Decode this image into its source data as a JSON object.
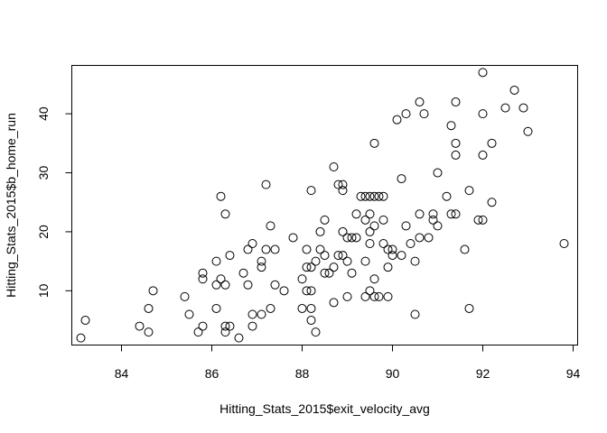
{
  "chart_data": {
    "type": "scatter",
    "title": "",
    "xlabel": "Hitting_Stats_2015$exit_velocity_avg",
    "ylabel": "Hitting_Stats_2015$b_home_run",
    "xlim": [
      82.9,
      94.1
    ],
    "ylim": [
      0.8,
      48.2
    ],
    "xticks": [
      84,
      86,
      88,
      90,
      92,
      94
    ],
    "yticks": [
      10,
      20,
      30,
      40
    ],
    "grid": false,
    "legend": "none",
    "points": [
      {
        "x": 83.1,
        "y": 2
      },
      {
        "x": 83.2,
        "y": 5
      },
      {
        "x": 84.4,
        "y": 4
      },
      {
        "x": 84.6,
        "y": 3
      },
      {
        "x": 84.6,
        "y": 7
      },
      {
        "x": 84.7,
        "y": 10
      },
      {
        "x": 85.4,
        "y": 9
      },
      {
        "x": 85.5,
        "y": 6
      },
      {
        "x": 85.7,
        "y": 3
      },
      {
        "x": 85.8,
        "y": 4
      },
      {
        "x": 85.8,
        "y": 12
      },
      {
        "x": 85.8,
        "y": 13
      },
      {
        "x": 86.1,
        "y": 11
      },
      {
        "x": 86.1,
        "y": 7
      },
      {
        "x": 86.1,
        "y": 15
      },
      {
        "x": 86.2,
        "y": 12
      },
      {
        "x": 86.2,
        "y": 26
      },
      {
        "x": 86.3,
        "y": 23
      },
      {
        "x": 86.3,
        "y": 11
      },
      {
        "x": 86.3,
        "y": 4
      },
      {
        "x": 86.3,
        "y": 3
      },
      {
        "x": 86.4,
        "y": 4
      },
      {
        "x": 86.4,
        "y": 16
      },
      {
        "x": 86.6,
        "y": 2
      },
      {
        "x": 86.7,
        "y": 13
      },
      {
        "x": 86.8,
        "y": 11
      },
      {
        "x": 86.8,
        "y": 17
      },
      {
        "x": 86.9,
        "y": 18
      },
      {
        "x": 86.9,
        "y": 6
      },
      {
        "x": 86.9,
        "y": 4
      },
      {
        "x": 87.1,
        "y": 6
      },
      {
        "x": 87.1,
        "y": 14
      },
      {
        "x": 87.1,
        "y": 15
      },
      {
        "x": 87.2,
        "y": 28
      },
      {
        "x": 87.2,
        "y": 17
      },
      {
        "x": 87.3,
        "y": 21
      },
      {
        "x": 87.3,
        "y": 7
      },
      {
        "x": 87.4,
        "y": 17
      },
      {
        "x": 87.4,
        "y": 11
      },
      {
        "x": 87.6,
        "y": 10
      },
      {
        "x": 87.8,
        "y": 19
      },
      {
        "x": 88.0,
        "y": 12
      },
      {
        "x": 88.0,
        "y": 7
      },
      {
        "x": 88.1,
        "y": 14
      },
      {
        "x": 88.1,
        "y": 17
      },
      {
        "x": 88.1,
        "y": 10
      },
      {
        "x": 88.2,
        "y": 27
      },
      {
        "x": 88.2,
        "y": 14
      },
      {
        "x": 88.2,
        "y": 10
      },
      {
        "x": 88.2,
        "y": 7
      },
      {
        "x": 88.2,
        "y": 5
      },
      {
        "x": 88.3,
        "y": 3
      },
      {
        "x": 88.3,
        "y": 15
      },
      {
        "x": 88.4,
        "y": 17
      },
      {
        "x": 88.4,
        "y": 20
      },
      {
        "x": 88.5,
        "y": 22
      },
      {
        "x": 88.5,
        "y": 16
      },
      {
        "x": 88.5,
        "y": 13
      },
      {
        "x": 88.6,
        "y": 13
      },
      {
        "x": 88.7,
        "y": 31
      },
      {
        "x": 88.7,
        "y": 14
      },
      {
        "x": 88.7,
        "y": 8
      },
      {
        "x": 88.8,
        "y": 28
      },
      {
        "x": 88.8,
        "y": 16
      },
      {
        "x": 88.9,
        "y": 28
      },
      {
        "x": 88.9,
        "y": 27
      },
      {
        "x": 88.9,
        "y": 20
      },
      {
        "x": 88.9,
        "y": 16
      },
      {
        "x": 89.0,
        "y": 19
      },
      {
        "x": 89.0,
        "y": 15
      },
      {
        "x": 89.0,
        "y": 9
      },
      {
        "x": 89.1,
        "y": 19
      },
      {
        "x": 89.1,
        "y": 13
      },
      {
        "x": 89.2,
        "y": 23
      },
      {
        "x": 89.2,
        "y": 19
      },
      {
        "x": 89.3,
        "y": 26
      },
      {
        "x": 89.4,
        "y": 26
      },
      {
        "x": 89.4,
        "y": 22
      },
      {
        "x": 89.4,
        "y": 15
      },
      {
        "x": 89.4,
        "y": 9
      },
      {
        "x": 89.5,
        "y": 26
      },
      {
        "x": 89.5,
        "y": 23
      },
      {
        "x": 89.5,
        "y": 20
      },
      {
        "x": 89.5,
        "y": 18
      },
      {
        "x": 89.5,
        "y": 10
      },
      {
        "x": 89.6,
        "y": 35
      },
      {
        "x": 89.6,
        "y": 26
      },
      {
        "x": 89.6,
        "y": 21
      },
      {
        "x": 89.6,
        "y": 12
      },
      {
        "x": 89.6,
        "y": 9
      },
      {
        "x": 89.7,
        "y": 26
      },
      {
        "x": 89.7,
        "y": 9
      },
      {
        "x": 89.8,
        "y": 26
      },
      {
        "x": 89.8,
        "y": 22
      },
      {
        "x": 89.8,
        "y": 18
      },
      {
        "x": 89.9,
        "y": 17
      },
      {
        "x": 89.9,
        "y": 14
      },
      {
        "x": 89.9,
        "y": 9
      },
      {
        "x": 90.0,
        "y": 17
      },
      {
        "x": 90.0,
        "y": 16
      },
      {
        "x": 90.1,
        "y": 39
      },
      {
        "x": 90.2,
        "y": 29
      },
      {
        "x": 90.2,
        "y": 16
      },
      {
        "x": 90.3,
        "y": 40
      },
      {
        "x": 90.3,
        "y": 21
      },
      {
        "x": 90.4,
        "y": 18
      },
      {
        "x": 90.5,
        "y": 15
      },
      {
        "x": 90.5,
        "y": 6
      },
      {
        "x": 90.6,
        "y": 42
      },
      {
        "x": 90.6,
        "y": 23
      },
      {
        "x": 90.6,
        "y": 19
      },
      {
        "x": 90.7,
        "y": 40
      },
      {
        "x": 90.8,
        "y": 19
      },
      {
        "x": 90.9,
        "y": 23
      },
      {
        "x": 90.9,
        "y": 22
      },
      {
        "x": 91.0,
        "y": 30
      },
      {
        "x": 91.0,
        "y": 21
      },
      {
        "x": 91.2,
        "y": 26
      },
      {
        "x": 91.3,
        "y": 38
      },
      {
        "x": 91.3,
        "y": 23
      },
      {
        "x": 91.4,
        "y": 42
      },
      {
        "x": 91.4,
        "y": 35
      },
      {
        "x": 91.4,
        "y": 33
      },
      {
        "x": 91.4,
        "y": 23
      },
      {
        "x": 91.6,
        "y": 17
      },
      {
        "x": 91.7,
        "y": 27
      },
      {
        "x": 91.7,
        "y": 7
      },
      {
        "x": 91.9,
        "y": 22
      },
      {
        "x": 92.0,
        "y": 47
      },
      {
        "x": 92.0,
        "y": 40
      },
      {
        "x": 92.0,
        "y": 33
      },
      {
        "x": 92.0,
        "y": 22
      },
      {
        "x": 92.2,
        "y": 35
      },
      {
        "x": 92.2,
        "y": 25
      },
      {
        "x": 92.5,
        "y": 41
      },
      {
        "x": 92.7,
        "y": 44
      },
      {
        "x": 92.9,
        "y": 41
      },
      {
        "x": 93.0,
        "y": 37
      },
      {
        "x": 93.8,
        "y": 18
      }
    ]
  }
}
